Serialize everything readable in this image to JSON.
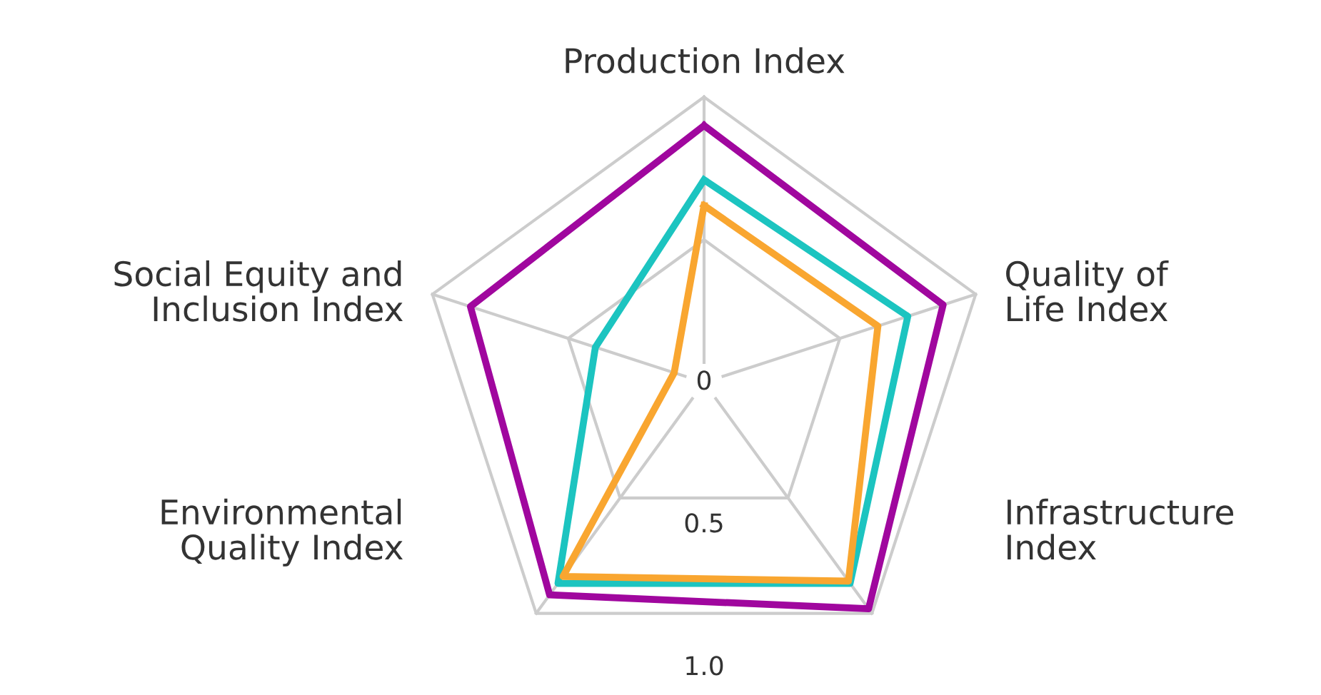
{
  "chart_data": {
    "type": "radar",
    "categories": [
      "Production Index",
      "Quality of\nLife Index",
      "Infrastructure\nIndex",
      "Environmental\nQuality Index",
      "Social Equity and\nInclusion Index"
    ],
    "ylim": [
      0,
      1.0
    ],
    "yticks": [
      0,
      0.5,
      {
        "value": 1.0,
        "label": "1.0"
      }
    ],
    "grid": true,
    "series": [
      {
        "color": "#a0079e",
        "values": [
          0.9,
          0.88,
          0.98,
          0.92,
          0.86
        ]
      },
      {
        "color": "#1cc4c0",
        "values": [
          0.71,
          0.75,
          0.87,
          0.87,
          0.4
        ]
      },
      {
        "color": "#f9a630",
        "values": [
          0.62,
          0.64,
          0.86,
          0.84,
          0.11
        ]
      }
    ]
  }
}
